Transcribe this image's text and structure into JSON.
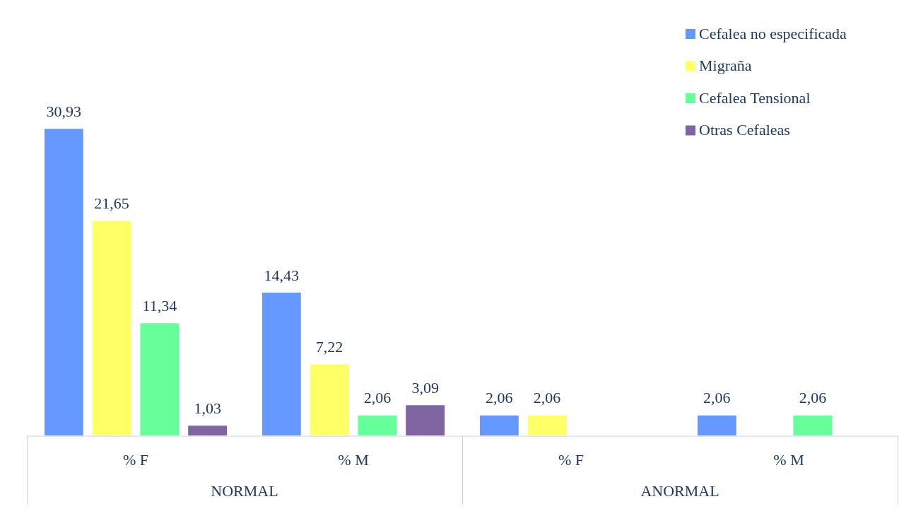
{
  "chart_data": {
    "type": "bar",
    "categories": [
      "% F",
      "% M",
      "% F",
      "% M"
    ],
    "series": [
      {
        "name": "Cefalea no especificada",
        "color": "#6699ff",
        "values": [
          30.93,
          14.43,
          2.06,
          2.06
        ],
        "value_labels": [
          "30,93",
          "14,43",
          "2,06",
          "2,06"
        ]
      },
      {
        "name": "Migraña",
        "color": "#ffff66",
        "values": [
          21.65,
          7.22,
          2.06,
          null
        ],
        "value_labels": [
          "21,65",
          "7,22",
          "2,06",
          null
        ]
      },
      {
        "name": "Cefalea Tensional",
        "color": "#66ff99",
        "values": [
          11.34,
          2.06,
          null,
          2.06
        ],
        "value_labels": [
          "11,34",
          "2,06",
          null,
          "2,06"
        ]
      },
      {
        "name": "Otras Cefaleas",
        "color": "#8064a2",
        "values": [
          1.03,
          3.09,
          null,
          null
        ],
        "value_labels": [
          "1,03",
          "3,09",
          null,
          null
        ]
      }
    ],
    "annotations": [
      "NORMAL",
      "ANORMAL"
    ],
    "legend": "top right",
    "grid": false,
    "tick_labels": "x"
  }
}
